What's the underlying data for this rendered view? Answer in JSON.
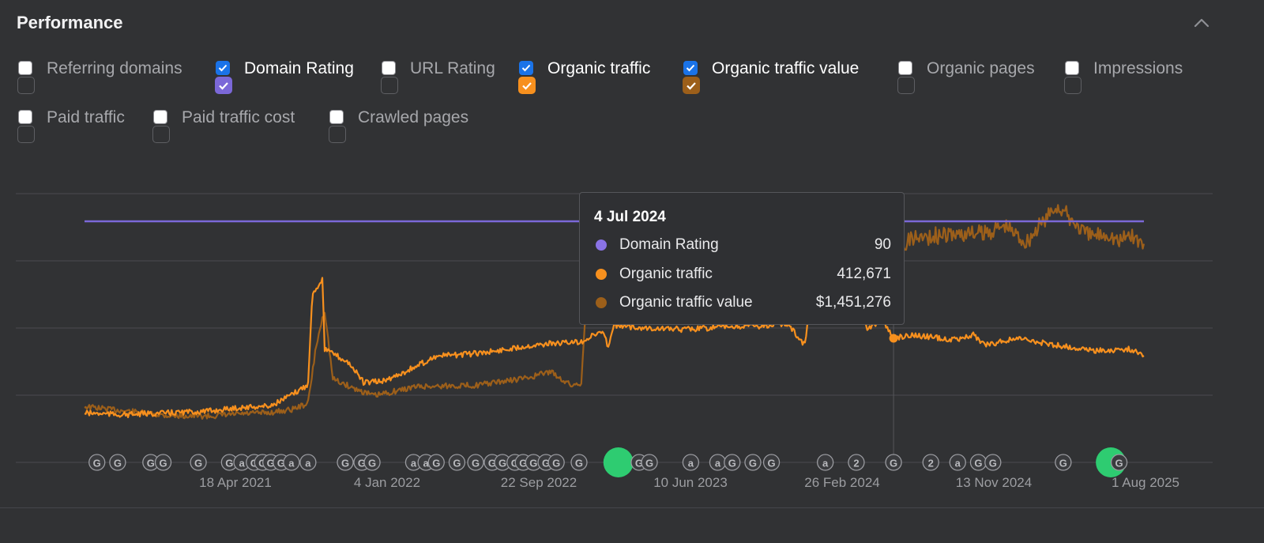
{
  "panel": {
    "title": "Performance"
  },
  "metrics": [
    {
      "label": "Referring domains",
      "checked": false,
      "color": ""
    },
    {
      "label": "Domain Rating",
      "checked": true,
      "color": "#7b68d8"
    },
    {
      "label": "URL Rating",
      "checked": false,
      "color": ""
    },
    {
      "label": "Organic traffic",
      "checked": true,
      "color": "#f7901e"
    },
    {
      "label": "Organic traffic value",
      "checked": true,
      "color": "#9c5f1a"
    },
    {
      "label": "Organic pages",
      "checked": false,
      "color": ""
    },
    {
      "label": "Impressions",
      "checked": false,
      "color": ""
    },
    {
      "label": "Paid traffic",
      "checked": false,
      "color": ""
    },
    {
      "label": "Paid traffic cost",
      "checked": false,
      "color": ""
    },
    {
      "label": "Crawled pages",
      "checked": false,
      "color": ""
    }
  ],
  "tooltip": {
    "date": "4 Jul 2024",
    "rows": [
      {
        "name": "Domain Rating",
        "value": "90",
        "color": "#8a73e6"
      },
      {
        "name": "Organic traffic",
        "value": "412,671",
        "color": "#f7901e"
      },
      {
        "name": "Organic traffic value",
        "value": "$1,451,276",
        "color": "#9c5f1a"
      }
    ]
  },
  "chart_data": {
    "type": "line",
    "title": "",
    "xlabel": "",
    "ylabel": "",
    "x_ticks": [
      "18 Apr 2021",
      "4 Jan 2022",
      "22 Sep 2022",
      "10 Jun 2023",
      "26 Feb 2024",
      "13 Nov 2024",
      "1 Aug 2025"
    ],
    "x_range_years": [
      2020.6,
      2025.72
    ],
    "gridlines": 5,
    "hover_x": 2024.51,
    "series": [
      {
        "name": "Domain Rating",
        "color": "#7b68d8",
        "points": [
          [
            2020.6,
            90
          ],
          [
            2025.72,
            90
          ]
        ]
      },
      {
        "name": "Organic traffic",
        "color": "#f7901e",
        "points": [
          [
            2020.6,
            110
          ],
          [
            2020.8,
            105
          ],
          [
            2021.0,
            110
          ],
          [
            2021.2,
            115
          ],
          [
            2021.35,
            125
          ],
          [
            2021.5,
            130
          ],
          [
            2021.6,
            160
          ],
          [
            2021.68,
            190
          ],
          [
            2021.7,
            440
          ],
          [
            2021.75,
            490
          ],
          [
            2021.76,
            290
          ],
          [
            2021.82,
            270
          ],
          [
            2021.88,
            250
          ],
          [
            2021.95,
            195
          ],
          [
            2022.05,
            200
          ],
          [
            2022.2,
            240
          ],
          [
            2022.3,
            270
          ],
          [
            2022.45,
            275
          ],
          [
            2022.6,
            285
          ],
          [
            2022.75,
            300
          ],
          [
            2022.85,
            305
          ],
          [
            2023.0,
            310
          ],
          [
            2023.1,
            340
          ],
          [
            2023.13,
            300
          ],
          [
            2023.16,
            355
          ],
          [
            2023.3,
            350
          ],
          [
            2023.5,
            345
          ],
          [
            2023.7,
            352
          ],
          [
            2023.9,
            355
          ],
          [
            2024.0,
            360
          ],
          [
            2024.08,
            300
          ],
          [
            2024.1,
            380
          ],
          [
            2024.13,
            505
          ],
          [
            2024.18,
            480
          ],
          [
            2024.3,
            430
          ],
          [
            2024.36,
            460
          ],
          [
            2024.38,
            340
          ],
          [
            2024.45,
            375
          ],
          [
            2024.51,
            320
          ],
          [
            2024.6,
            330
          ],
          [
            2024.8,
            315
          ],
          [
            2024.9,
            330
          ],
          [
            2024.95,
            300
          ],
          [
            2025.1,
            320
          ],
          [
            2025.3,
            300
          ],
          [
            2025.5,
            285
          ],
          [
            2025.65,
            290
          ],
          [
            2025.72,
            270
          ]
        ]
      },
      {
        "name": "Organic traffic value",
        "color": "#9c5f1a",
        "points": [
          [
            2020.6,
            150
          ],
          [
            2020.8,
            135
          ],
          [
            2021.0,
            120
          ],
          [
            2021.2,
            118
          ],
          [
            2021.35,
            125
          ],
          [
            2021.5,
            130
          ],
          [
            2021.6,
            140
          ],
          [
            2021.68,
            160
          ],
          [
            2021.72,
            350
          ],
          [
            2021.76,
            470
          ],
          [
            2021.8,
            240
          ],
          [
            2021.9,
            210
          ],
          [
            2022.0,
            185
          ],
          [
            2022.2,
            215
          ],
          [
            2022.5,
            220
          ],
          [
            2022.75,
            245
          ],
          [
            2022.85,
            265
          ],
          [
            2022.95,
            220
          ],
          [
            2023.0,
            225
          ],
          [
            2023.02,
            450
          ],
          [
            2023.05,
            710
          ],
          [
            2023.2,
            705
          ],
          [
            2023.5,
            700
          ],
          [
            2023.8,
            705
          ],
          [
            2024.0,
            710
          ],
          [
            2024.15,
            700
          ],
          [
            2024.3,
            695
          ],
          [
            2024.45,
            690
          ],
          [
            2024.51,
            655
          ],
          [
            2024.6,
            705
          ],
          [
            2024.8,
            715
          ],
          [
            2024.95,
            720
          ],
          [
            2025.05,
            745
          ],
          [
            2025.15,
            690
          ],
          [
            2025.3,
            810
          ],
          [
            2025.45,
            710
          ],
          [
            2025.55,
            720
          ],
          [
            2025.6,
            690
          ],
          [
            2025.65,
            720
          ],
          [
            2025.72,
            680
          ]
        ]
      }
    ],
    "annotation_markers": {
      "glyphs": [
        "G",
        "G",
        "G",
        "G",
        "G",
        "G",
        "a",
        "G",
        "G",
        "G",
        "G",
        "a",
        "a",
        "G",
        "G",
        "G",
        "a",
        "a",
        "G",
        "G",
        "G",
        "G",
        "G",
        "G",
        "G",
        "G",
        "G",
        "G",
        "G",
        "G",
        "G",
        "a",
        "a",
        "G",
        "G",
        "G",
        "a",
        "2",
        "G",
        "2",
        "a",
        "G",
        "G",
        "G",
        "G"
      ],
      "x": [
        2020.66,
        2020.76,
        2020.92,
        2020.98,
        2021.15,
        2021.3,
        2021.36,
        2021.42,
        2021.46,
        2021.5,
        2021.55,
        2021.6,
        2021.68,
        2021.86,
        2021.94,
        2021.99,
        2022.19,
        2022.25,
        2022.3,
        2022.4,
        2022.49,
        2022.57,
        2022.62,
        2022.68,
        2022.72,
        2022.77,
        2022.83,
        2022.88,
        2022.99,
        2023.28,
        2023.33,
        2023.53,
        2023.66,
        2023.73,
        2023.83,
        2023.92,
        2024.18,
        2024.33,
        2024.51,
        2024.69,
        2024.82,
        2024.92,
        2024.99,
        2025.33,
        2025.6
      ],
      "highlights": [
        2023.18,
        2025.56
      ]
    }
  }
}
